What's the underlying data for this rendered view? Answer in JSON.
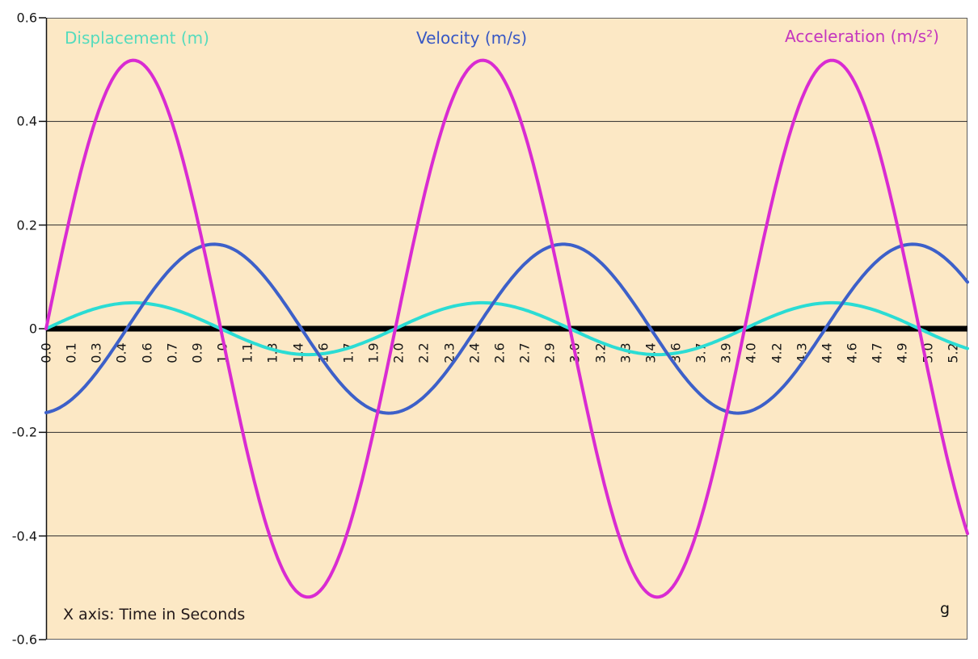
{
  "chart_data": {
    "type": "line",
    "title": "",
    "x_axis": {
      "label_note": "X axis: Time in Seconds",
      "unit": "s",
      "range_s": [
        0,
        5.25
      ],
      "tick_step_s": 0.1435,
      "tick_labels": [
        "0.0",
        "0.1",
        "0.3",
        "0.4",
        "0.6",
        "0.7",
        "0.9",
        "1.0",
        "1.1",
        "1.3",
        "1.4",
        "1.6",
        "1.7",
        "1.9",
        "2.0",
        "2.2",
        "2.3",
        "2.4",
        "2.6",
        "2.7",
        "2.9",
        "3.0",
        "3.2",
        "3.3",
        "3.4",
        "3.6",
        "3.7",
        "3.9",
        "4.0",
        "4.2",
        "4.3",
        "4.4",
        "4.6",
        "4.7",
        "4.9",
        "5.0",
        "5.2"
      ]
    },
    "y_axis": {
      "min": -0.6,
      "max": 0.6,
      "tick_interval": 0.2,
      "tick_labels": [
        "0.6",
        "0.4",
        "0.2",
        "0",
        "-0.2",
        "-0.4",
        "-0.6"
      ],
      "tick_values": [
        0.6,
        0.4,
        0.2,
        0,
        -0.2,
        -0.4,
        -0.6
      ]
    },
    "grid": "horizontal",
    "legend": "inline-colored-labels-above-plot",
    "series": [
      {
        "name": "Displacement (m)",
        "color": "#2BDCD4",
        "label_color": "#55DBBD",
        "amplitude": 0.05,
        "period_s": 1.99,
        "phase_s": 0,
        "value_at_t0": 0,
        "first_peak": {
          "t": 0.5,
          "y": 0.05
        },
        "equation": "y(t) = 0.05 * sin(2*pi*(t)/1.99)"
      },
      {
        "name": "Velocity (m/s)",
        "color": "#3D60C9",
        "label_color": "#3757C4",
        "amplitude": 0.163,
        "period_s": 1.99,
        "phase_s": 0.46,
        "value_at_t0": -0.161,
        "first_peak": {
          "t": 0.96,
          "y": 0.163
        },
        "equation": "y(t) = 0.163 * sin(2*pi*(t-0.46)/1.99)"
      },
      {
        "name": "Acceleration (m/s²)",
        "color": "#D92BD2",
        "label_color": "#C436BE",
        "amplitude": 0.518,
        "period_s": 1.99,
        "phase_s": 0,
        "value_at_t0": 0,
        "first_peak": {
          "t": 0.5,
          "y": 0.518
        },
        "equation": "y(t) = 0.518 * sin(2*pi*(t)/1.99)"
      }
    ],
    "annotations": {
      "corner_label": "g"
    },
    "colors": {
      "plot_background": "#FCE8C5",
      "outer_background": "#FFFFFF",
      "gridline": "#2b2b2b",
      "axis": "#111111",
      "zero_line": "#000000",
      "plot_border": "#5d5d5d",
      "tick_text": "#161616"
    }
  }
}
